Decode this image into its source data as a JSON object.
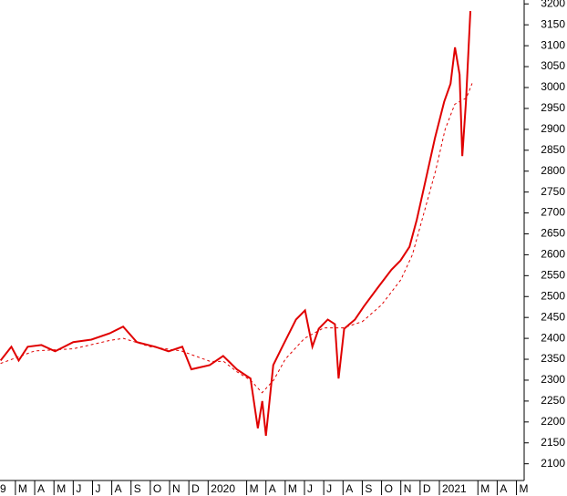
{
  "chart_data": {
    "type": "line",
    "xlim": [
      1.2,
      28.4
    ],
    "ylim": [
      2060,
      3205
    ],
    "xticks": [
      {
        "value": 0,
        "label": "9"
      },
      {
        "value": 2,
        "label": "M"
      },
      {
        "value": 3,
        "label": "A"
      },
      {
        "value": 4,
        "label": "M"
      },
      {
        "value": 5,
        "label": "J"
      },
      {
        "value": 6,
        "label": "J"
      },
      {
        "value": 7,
        "label": "A"
      },
      {
        "value": 8,
        "label": "S"
      },
      {
        "value": 9,
        "label": "O"
      },
      {
        "value": 10,
        "label": "N"
      },
      {
        "value": 11,
        "label": "D"
      },
      {
        "value": 12,
        "label": "2020"
      },
      {
        "value": 14,
        "label": "M"
      },
      {
        "value": 15,
        "label": "A"
      },
      {
        "value": 16,
        "label": "M"
      },
      {
        "value": 17,
        "label": "J"
      },
      {
        "value": 18,
        "label": "J"
      },
      {
        "value": 19,
        "label": "A"
      },
      {
        "value": 20,
        "label": "S"
      },
      {
        "value": 21,
        "label": "O"
      },
      {
        "value": 22,
        "label": "N"
      },
      {
        "value": 23,
        "label": "D"
      },
      {
        "value": 24,
        "label": "2021"
      },
      {
        "value": 26,
        "label": "M"
      },
      {
        "value": 27,
        "label": "A"
      },
      {
        "value": 28,
        "label": "M"
      }
    ],
    "yticks": [
      2100,
      2150,
      2200,
      2250,
      2300,
      2350,
      2400,
      2450,
      2500,
      2550,
      2600,
      2650,
      2700,
      2750,
      2800,
      2850,
      2900,
      2950,
      3000,
      3050,
      3100,
      3150,
      3200
    ],
    "series": [
      {
        "color": "#e00000",
        "dash": false,
        "x": [
          1.23,
          1.79,
          2.17,
          2.64,
          3.35,
          4.06,
          5.0,
          5.94,
          6.89,
          7.59,
          8.3,
          9.25,
          9.95,
          10.66,
          11.13,
          12.08,
          12.78,
          13.49,
          14.2,
          14.58,
          14.81,
          15.0,
          15.38,
          15.85,
          16.56,
          17.03,
          17.41,
          17.74,
          18.21,
          18.58,
          18.77,
          19.06,
          19.62,
          20.09,
          20.8,
          21.51,
          21.98,
          22.45,
          22.83,
          23.3,
          23.77,
          24.25,
          24.58,
          24.81,
          25.05,
          25.19,
          25.38,
          25.61
        ],
        "values": [
          2347,
          2380,
          2347,
          2380,
          2384,
          2369,
          2391,
          2397,
          2412,
          2428,
          2391,
          2380,
          2369,
          2380,
          2326,
          2336,
          2358,
          2326,
          2304,
          2185,
          2250,
          2167,
          2336,
          2380,
          2445,
          2467,
          2380,
          2423,
          2445,
          2434,
          2304,
          2423,
          2445,
          2477,
          2521,
          2564,
          2586,
          2619,
          2684,
          2781,
          2879,
          2966,
          3009,
          3096,
          3031,
          2836,
          2966,
          3183
        ]
      },
      {
        "color": "#e00000",
        "dash": true,
        "x": [
          1.23,
          3.0,
          5.0,
          6.9,
          7.6,
          9.0,
          10.6,
          12.1,
          12.8,
          13.5,
          14.2,
          14.8,
          15.4,
          16.0,
          17.0,
          18.0,
          19.0,
          20.0,
          21.0,
          22.0,
          22.6,
          23.2,
          23.8,
          24.3,
          24.8,
          25.4,
          25.7
        ],
        "values": [
          2340,
          2370,
          2375,
          2395,
          2400,
          2380,
          2370,
          2345,
          2345,
          2320,
          2300,
          2270,
          2300,
          2350,
          2400,
          2425,
          2425,
          2440,
          2480,
          2540,
          2600,
          2700,
          2800,
          2900,
          2960,
          2975,
          3010
        ]
      }
    ]
  }
}
